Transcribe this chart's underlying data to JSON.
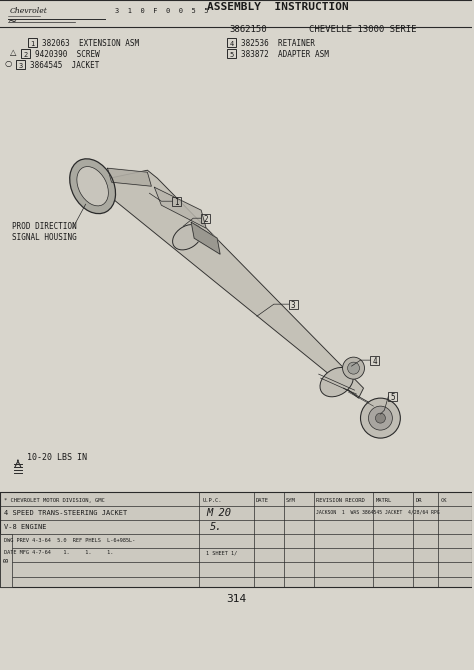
{
  "bg_color": "#d8d5cc",
  "title_text": "ASSEMBLY  INSTRUCTION",
  "part_number": "3862150",
  "series_text": "CHEVELLE 13000 SERIE",
  "parts_left": [
    {
      "num": "1",
      "code": "382063",
      "desc": "EXTENSION ASM"
    },
    {
      "num": "2",
      "code": "9420390",
      "desc": "SCREW"
    },
    {
      "num": "3",
      "code": "3864545",
      "desc": "JACKET"
    }
  ],
  "parts_right": [
    {
      "num": "4",
      "code": "382536",
      "desc": "RETAINER"
    },
    {
      "num": "5",
      "code": "383872",
      "desc": "ADAPTER ASM"
    }
  ],
  "label_signal": "PROD DIRECTION\nSIGNAL HOUSING",
  "torque_label": "10-20 LBS IN",
  "page_num": "314",
  "revision_note": "JACKSON  1  WAS 3864545 JACKET  4/28/64 RPG",
  "line_color": "#2a2a2a",
  "text_color": "#1a1a1a",
  "bg_color_table": "#ccc9c0",
  "shaft_fill": "#b8b4aa",
  "housing_fill": "#aaa9a0",
  "housing_inner": "#c8c5bc",
  "joint_fill": "#c0bdb4",
  "serial_text": "3  1  0  F  0  0  5  5",
  "logo_text": "Chevrolet",
  "header_row": [
    "* CHEVROLET MOTOR DIVISION, GMC",
    "U.P.C.",
    "DATE",
    "SYM",
    "REVISION RECORD",
    "MATRL",
    "DR",
    "CK"
  ],
  "row2_main": "4 SPEED TRANS-STEERING JACKET",
  "row2_upc": "M 20",
  "row3_main": "V-8 ENGINE",
  "row3_upc": "5.",
  "row4_main": "DWG PREV 4-3-64  5.0  REF PHELS  L-6+985L-",
  "row5_main": "DATE MFG 4-7-64    1.     1.     1.",
  "row5_upc": "1 SHEET 1/"
}
